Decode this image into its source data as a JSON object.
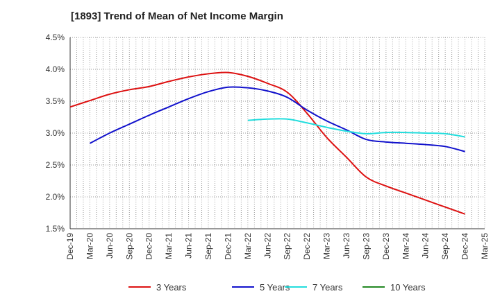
{
  "chart_data": {
    "type": "line",
    "title": "[1893]  Trend of Mean of Net Income Margin",
    "xlabel": "",
    "ylabel": "",
    "ylim": [
      1.5,
      4.5
    ],
    "y_ticks": [
      "4.5%",
      "4.0%",
      "3.5%",
      "3.0%",
      "2.5%",
      "2.0%",
      "1.5%"
    ],
    "y_tick_values": [
      4.5,
      4.0,
      3.5,
      3.0,
      2.5,
      2.0,
      1.5
    ],
    "x_ticks": [
      "Dec-19",
      "Mar-20",
      "Jun-20",
      "Sep-20",
      "Dec-20",
      "Mar-21",
      "Jun-21",
      "Sep-21",
      "Dec-21",
      "Mar-22",
      "Jun-22",
      "Sep-22",
      "Dec-22",
      "Mar-23",
      "Jun-23",
      "Sep-23",
      "Dec-23",
      "Mar-24",
      "Jun-24",
      "Sep-24",
      "Dec-24",
      "Mar-25"
    ],
    "grid": true,
    "legend_position": "bottom",
    "series": [
      {
        "name": "3 Years",
        "color": "#dd1111",
        "x": [
          "Dec-19",
          "Mar-20",
          "Jun-20",
          "Sep-20",
          "Dec-20",
          "Mar-21",
          "Jun-21",
          "Sep-21",
          "Dec-21",
          "Mar-22",
          "Jun-22",
          "Sep-22",
          "Dec-22",
          "Mar-23",
          "Jun-23",
          "Sep-23",
          "Dec-23",
          "Mar-24",
          "Jun-24",
          "Sep-24",
          "Dec-24"
        ],
        "values": [
          3.41,
          3.51,
          3.61,
          3.68,
          3.73,
          3.81,
          3.88,
          3.93,
          3.95,
          3.89,
          3.78,
          3.64,
          3.31,
          2.93,
          2.62,
          2.31,
          2.17,
          2.06,
          1.95,
          1.84,
          1.73
        ]
      },
      {
        "name": "5 Years",
        "color": "#1111cc",
        "x": [
          "Mar-20",
          "Jun-20",
          "Sep-20",
          "Dec-20",
          "Mar-21",
          "Jun-21",
          "Sep-21",
          "Dec-21",
          "Mar-22",
          "Jun-22",
          "Sep-22",
          "Dec-22",
          "Mar-23",
          "Jun-23",
          "Sep-23",
          "Dec-23",
          "Mar-24",
          "Jun-24",
          "Sep-24",
          "Dec-24"
        ],
        "values": [
          2.84,
          3.0,
          3.14,
          3.28,
          3.41,
          3.54,
          3.65,
          3.72,
          3.71,
          3.66,
          3.56,
          3.36,
          3.19,
          3.05,
          2.9,
          2.86,
          2.84,
          2.82,
          2.79,
          2.71
        ]
      },
      {
        "name": "7 Years",
        "color": "#22dddd",
        "x": [
          "Mar-22",
          "Jun-22",
          "Sep-22",
          "Dec-22",
          "Mar-23",
          "Jun-23",
          "Sep-23",
          "Dec-23",
          "Mar-24",
          "Jun-24",
          "Sep-24",
          "Dec-24"
        ],
        "values": [
          3.2,
          3.22,
          3.22,
          3.16,
          3.09,
          3.03,
          2.99,
          3.01,
          3.01,
          3.0,
          2.99,
          2.94
        ]
      },
      {
        "name": "10 Years",
        "color": "#228822",
        "x": [],
        "values": []
      }
    ]
  }
}
